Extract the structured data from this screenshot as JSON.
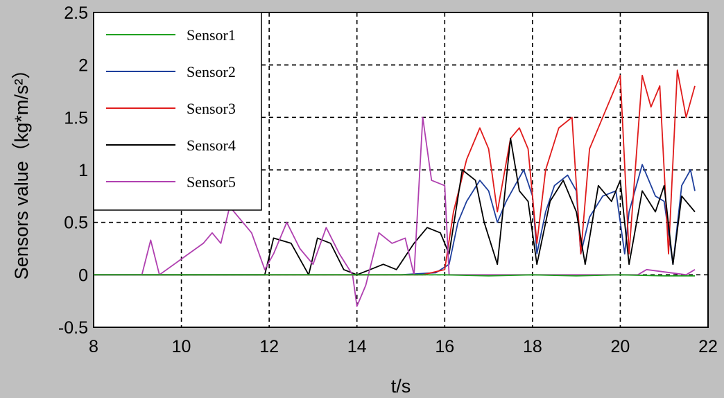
{
  "chart_data": {
    "type": "line",
    "title": "",
    "xlabel": "t/s",
    "ylabel": "Sensors value（kg*m/s²）",
    "xlim": [
      8,
      22
    ],
    "ylim": [
      -0.5,
      2.5
    ],
    "xticks": [
      8,
      10,
      12,
      14,
      16,
      18,
      20,
      22
    ],
    "yticks": [
      -0.5,
      0,
      0.5,
      1,
      1.5,
      2,
      2.5
    ],
    "xtick_labels": [
      "8",
      "10",
      "12",
      "14",
      "16",
      "18",
      "20",
      "22"
    ],
    "ytick_labels": [
      "-0.5",
      "0",
      "0.5",
      "1",
      "1.5",
      "2",
      "2.5"
    ],
    "grid": true,
    "legend_position": "top-left",
    "series": [
      {
        "name": "Sensor1",
        "color": "#1fa01f",
        "x": [
          8,
          10,
          12,
          14,
          16,
          17,
          18,
          19,
          20,
          21,
          21.7
        ],
        "y": [
          0,
          0,
          0,
          0,
          0,
          -0.01,
          0,
          -0.01,
          0,
          -0.01,
          -0.01
        ]
      },
      {
        "name": "Sensor2",
        "color": "#1e3f9c",
        "x": [
          8,
          14,
          15,
          15.8,
          16.1,
          16.3,
          16.5,
          16.8,
          17.0,
          17.2,
          17.4,
          17.6,
          17.8,
          18.0,
          18.1,
          18.3,
          18.5,
          18.8,
          19.0,
          19.1,
          19.3,
          19.6,
          19.9,
          20.1,
          20.2,
          20.5,
          20.8,
          21.0,
          21.2,
          21.4,
          21.6,
          21.7
        ],
        "y": [
          0,
          0,
          0,
          0.02,
          0.1,
          0.5,
          0.7,
          0.9,
          0.8,
          0.5,
          0.7,
          0.85,
          1.0,
          0.75,
          0.2,
          0.6,
          0.85,
          0.95,
          0.8,
          0.2,
          0.55,
          0.75,
          0.8,
          0.2,
          0.6,
          1.05,
          0.75,
          0.7,
          0.1,
          0.85,
          1.0,
          0.8
        ]
      },
      {
        "name": "Sensor3",
        "color": "#e01b1b",
        "x": [
          8,
          12,
          14,
          15.5,
          16,
          16.2,
          16.5,
          16.8,
          17.0,
          17.2,
          17.5,
          17.7,
          17.9,
          18.1,
          18.3,
          18.6,
          18.9,
          19.1,
          19.3,
          19.7,
          20.0,
          20.2,
          20.5,
          20.7,
          20.9,
          21.1,
          21.3,
          21.5,
          21.7
        ],
        "y": [
          0,
          0,
          0,
          0,
          0.05,
          0.6,
          1.1,
          1.4,
          1.2,
          0.6,
          1.3,
          1.4,
          1.2,
          0.3,
          1.0,
          1.4,
          1.5,
          0.2,
          1.2,
          1.6,
          1.9,
          0.2,
          1.9,
          1.6,
          1.8,
          0.2,
          1.95,
          1.5,
          1.8
        ]
      },
      {
        "name": "Sensor4",
        "color": "#000000",
        "x": [
          8,
          10.6,
          11.9,
          12.1,
          12.5,
          12.9,
          13.1,
          13.4,
          13.7,
          14.0,
          14.3,
          14.6,
          14.9,
          15.3,
          15.6,
          15.9,
          16.1,
          16.4,
          16.7,
          16.9,
          17.2,
          17.5,
          17.7,
          17.9,
          18.1,
          18.4,
          18.7,
          19.0,
          19.2,
          19.5,
          19.8,
          20.0,
          20.2,
          20.5,
          20.8,
          21.0,
          21.2,
          21.4,
          21.7
        ],
        "y": [
          0,
          0,
          0,
          0.35,
          0.3,
          0.0,
          0.35,
          0.3,
          0.05,
          0.0,
          0.05,
          0.1,
          0.05,
          0.3,
          0.45,
          0.4,
          0.2,
          1.0,
          0.9,
          0.5,
          0.1,
          1.3,
          0.8,
          0.7,
          0.1,
          0.7,
          0.9,
          0.6,
          0.1,
          0.85,
          0.7,
          0.9,
          0.1,
          0.8,
          0.6,
          0.85,
          0.1,
          0.75,
          0.6
        ]
      },
      {
        "name": "Sensor5",
        "color": "#b040b0",
        "x": [
          8,
          9.1,
          9.3,
          9.5,
          10.5,
          10.7,
          10.9,
          11.1,
          11.3,
          11.6,
          11.9,
          12.1,
          12.4,
          12.7,
          13.0,
          13.3,
          13.6,
          13.9,
          14.0,
          14.2,
          14.5,
          14.8,
          15.1,
          15.3,
          15.5,
          15.7,
          16.0,
          16.1,
          16.5,
          17.0,
          20.4,
          20.6,
          21.5,
          21.7
        ],
        "y": [
          0,
          0,
          0.33,
          0.0,
          0.3,
          0.4,
          0.3,
          0.65,
          0.55,
          0.4,
          0.05,
          0.2,
          0.5,
          0.25,
          0.1,
          0.45,
          0.2,
          0.0,
          -0.3,
          -0.1,
          0.4,
          0.3,
          0.35,
          0.0,
          1.5,
          0.9,
          0.85,
          0.0,
          0.0,
          0.0,
          0.0,
          0.05,
          0.0,
          0.05
        ]
      }
    ]
  }
}
